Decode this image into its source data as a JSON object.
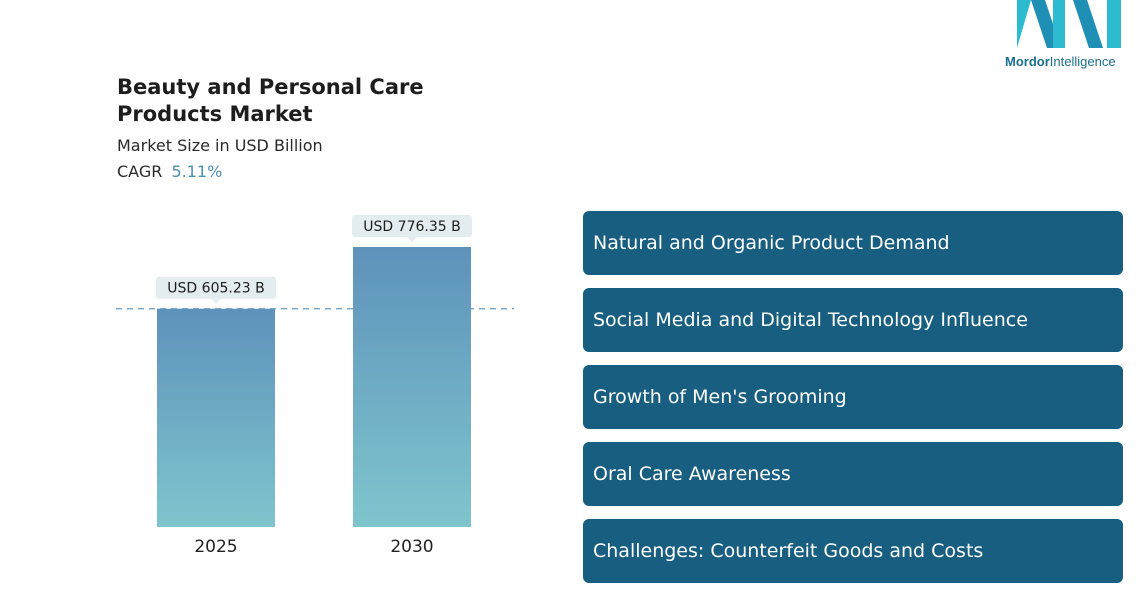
{
  "brand": {
    "logo_bold": "Mordor",
    "logo_light": "Intelligence",
    "colors": [
      "#1f8fb5",
      "#2dbbd0"
    ]
  },
  "header": {
    "title": "Beauty and Personal Care Products Market",
    "subtitle": "Market Size in USD Billion",
    "cagr_label": "CAGR",
    "cagr_value": "5.11%"
  },
  "drivers": [
    "Natural and Organic Product Demand",
    "Social Media and Digital Technology Influence",
    "Growth of Men's Grooming",
    "Oral Care Awareness",
    "Challenges: Counterfeit Goods and Costs"
  ],
  "chart_data": {
    "type": "bar",
    "categories": [
      "2025",
      "2030"
    ],
    "values": [
      605.23,
      776.35
    ],
    "data_labels": [
      "USD 605.23 B",
      "USD 776.35 B"
    ],
    "reference_line": 605.23,
    "colors": {
      "bar_top": "#5e92bb",
      "bar_bottom": "#7fc5cd",
      "label_bg": "#e3ecef",
      "dash": "#6b9bbd"
    }
  }
}
